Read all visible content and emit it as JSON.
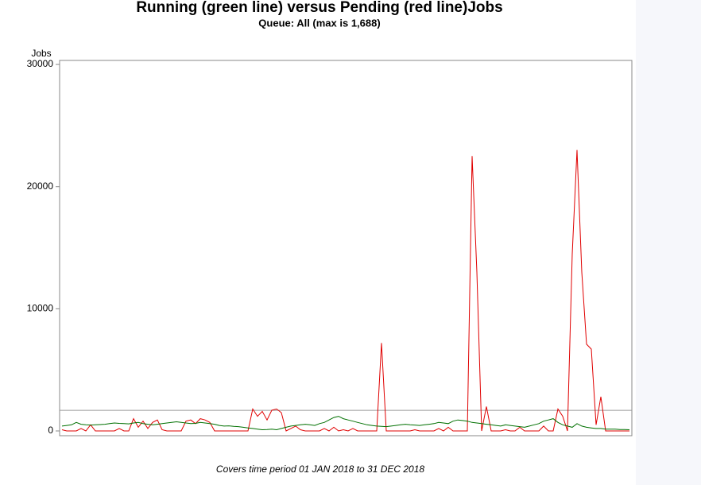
{
  "chart_data": {
    "type": "line",
    "title": "Running (green line) versus Pending (red line)Jobs",
    "subtitle": "Queue: All (max is 1,688)",
    "y_label": "Jobs",
    "footnote": "Covers time period 01 JAN 2018 to 31 DEC 2018",
    "reference_line": 1688,
    "ylim": [
      -390,
      30330
    ],
    "yticks": [
      0,
      10000,
      20000,
      30000
    ],
    "categories": [
      null,
      null,
      null,
      null,
      null,
      null,
      null,
      null,
      null,
      null,
      null,
      null,
      null,
      null,
      null,
      null,
      null,
      null,
      null,
      null,
      null,
      null,
      null,
      null,
      null,
      null,
      null,
      null,
      null,
      null,
      null,
      null,
      null,
      null,
      null,
      null,
      null,
      null,
      null,
      null,
      null,
      null,
      null,
      null,
      null,
      null,
      null,
      null,
      null,
      null,
      null,
      null,
      null,
      null,
      null,
      null,
      null,
      null,
      null,
      null,
      null,
      null,
      null,
      null,
      null,
      null,
      null,
      null,
      null,
      null,
      null,
      null,
      null,
      null,
      null,
      null,
      null,
      null,
      null,
      null,
      null,
      null,
      null,
      null,
      null,
      null,
      null,
      null,
      null,
      null,
      null,
      null,
      null,
      null,
      null,
      null,
      null,
      null,
      null,
      null,
      null,
      null,
      null,
      null,
      null,
      null,
      null,
      null,
      null,
      null,
      null,
      null,
      null,
      null,
      null,
      null,
      null,
      null,
      null,
      null
    ],
    "series": [
      {
        "name": "Running",
        "color": "#007000",
        "values": [
          400,
          450,
          500,
          700,
          550,
          500,
          480,
          500,
          520,
          550,
          600,
          650,
          620,
          600,
          580,
          650,
          700,
          600,
          550,
          500,
          550,
          600,
          650,
          700,
          750,
          700,
          650,
          600,
          620,
          700,
          650,
          600,
          550,
          450,
          400,
          420,
          380,
          350,
          300,
          250,
          200,
          150,
          100,
          120,
          150,
          100,
          200,
          300,
          400,
          450,
          500,
          550,
          500,
          450,
          600,
          700,
          900,
          1100,
          1200,
          1000,
          900,
          800,
          700,
          600,
          500,
          450,
          400,
          380,
          350,
          400,
          450,
          500,
          550,
          500,
          480,
          450,
          500,
          550,
          600,
          700,
          650,
          600,
          800,
          900,
          850,
          800,
          700,
          650,
          600,
          550,
          500,
          450,
          400,
          500,
          450,
          400,
          350,
          300,
          400,
          500,
          600,
          800,
          900,
          1000,
          700,
          500,
          400,
          300,
          600,
          400,
          300,
          250,
          200,
          200,
          150,
          150,
          150,
          120,
          120,
          100
        ]
      },
      {
        "name": "Pending",
        "color": "#e00000",
        "values": [
          100,
          0,
          0,
          0,
          200,
          0,
          500,
          0,
          0,
          0,
          0,
          0,
          200,
          0,
          0,
          1000,
          300,
          800,
          200,
          700,
          900,
          100,
          0,
          0,
          0,
          0,
          800,
          900,
          600,
          1000,
          900,
          700,
          0,
          0,
          0,
          0,
          0,
          0,
          0,
          0,
          1800,
          1200,
          1600,
          900,
          1700,
          1800,
          1500,
          0,
          200,
          400,
          100,
          0,
          0,
          0,
          0,
          200,
          0,
          300,
          0,
          100,
          0,
          200,
          0,
          0,
          0,
          0,
          0,
          7200,
          0,
          0,
          0,
          0,
          0,
          0,
          100,
          0,
          0,
          0,
          0,
          200,
          0,
          300,
          0,
          0,
          0,
          0,
          22500,
          13000,
          0,
          2000,
          0,
          0,
          0,
          100,
          0,
          0,
          300,
          0,
          0,
          0,
          0,
          400,
          0,
          0,
          1800,
          1200,
          0,
          14500,
          23000,
          13000,
          7100,
          6700,
          500,
          2800,
          0,
          0,
          0,
          0,
          0,
          0
        ]
      }
    ]
  }
}
